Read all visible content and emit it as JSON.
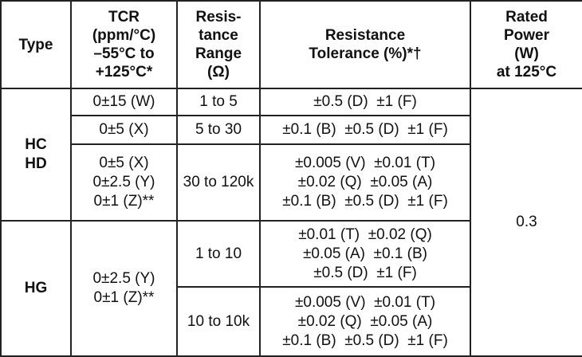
{
  "headers": {
    "type": [
      "Type"
    ],
    "tcr": [
      "TCR",
      "(ppm/°C)",
      "–55°C to",
      "+125°C*"
    ],
    "range": [
      "Resis-",
      "tance",
      "Range",
      "(Ω)"
    ],
    "tolerance": [
      "Resistance",
      "Tolerance (%)*†"
    ],
    "power": [
      "Rated",
      "Power",
      "(W)",
      "at 125°C"
    ]
  },
  "groups": {
    "hchd": {
      "type": [
        "HC",
        "HD"
      ],
      "rows": [
        {
          "tcr": [
            "0±15 (W)"
          ],
          "range": "1 to 5",
          "tolerance": [
            "±0.5 (D)  ±1 (F)"
          ]
        },
        {
          "tcr": [
            "0±5 (X)"
          ],
          "range": "5 to 30",
          "tolerance": [
            "±0.1 (B)  ±0.5 (D)  ±1 (F)"
          ]
        },
        {
          "tcr": [
            "0±5 (X)",
            "0±2.5 (Y)",
            "0±1 (Z)**"
          ],
          "range": "30 to 120k",
          "tolerance": [
            "±0.005 (V)  ±0.01 (T)",
            "±0.02 (Q)  ±0.05 (A)",
            "±0.1 (B)  ±0.5 (D)  ±1 (F)"
          ]
        }
      ]
    },
    "hg": {
      "type": [
        "HG"
      ],
      "tcr": [
        "0±2.5 (Y)",
        "0±1 (Z)**"
      ],
      "rows": [
        {
          "range": "1 to 10",
          "tolerance": [
            "±0.01 (T)  ±0.02 (Q)",
            "±0.05 (A)  ±0.1 (B)",
            "±0.5 (D)  ±1 (F)"
          ]
        },
        {
          "range": "10 to 10k",
          "tolerance": [
            "±0.005 (V)  ±0.01 (T)",
            "±0.02 (Q)  ±0.05 (A)",
            "±0.1 (B)  ±0.5 (D)  ±1 (F)"
          ]
        }
      ]
    }
  },
  "rated_power": "0.3"
}
